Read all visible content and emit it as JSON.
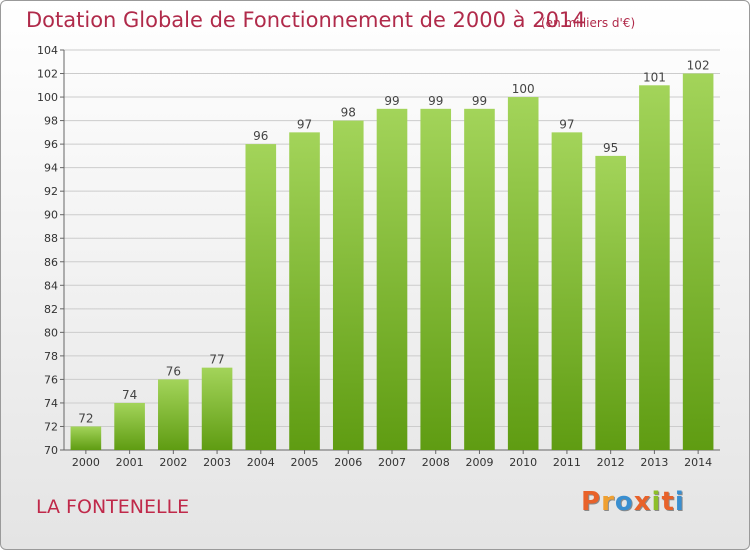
{
  "header": {
    "title": "Dotation Globale de Fonctionnement de 2000 à 2014",
    "subtitle": "(en milliers d'€)"
  },
  "footer": {
    "commune": "LA FONTENELLE",
    "logo": "Proxiti",
    "logo_colors": [
      "#e8622a",
      "#f0a030",
      "#3a8fd0",
      "#e8622a",
      "#8dbf2a",
      "#e8622a",
      "#3a8fd0"
    ]
  },
  "colors": {
    "bar_light": "#a3d45a",
    "bar_dark": "#5f9c12",
    "title": "#b02a4a",
    "grid": "#cccccc"
  },
  "chart_data": {
    "type": "bar",
    "categories": [
      "2000",
      "2001",
      "2002",
      "2003",
      "2004",
      "2005",
      "2006",
      "2007",
      "2008",
      "2009",
      "2010",
      "2011",
      "2012",
      "2013",
      "2014"
    ],
    "values": [
      72,
      74,
      76,
      77,
      96,
      97,
      98,
      99,
      99,
      99,
      100,
      97,
      95,
      101,
      102
    ],
    "data_labels": [
      "72",
      "74",
      "76",
      "77",
      "96",
      "97",
      "98",
      "99",
      "99",
      "99",
      "100",
      "97",
      "95",
      "101",
      "102"
    ],
    "yticks": [
      "70",
      "72",
      "74",
      "76",
      "78",
      "80",
      "82",
      "84",
      "86",
      "88",
      "90",
      "92",
      "94",
      "96",
      "98",
      "100",
      "102",
      "104"
    ],
    "ylim": [
      70,
      104
    ],
    "grid": true
  }
}
